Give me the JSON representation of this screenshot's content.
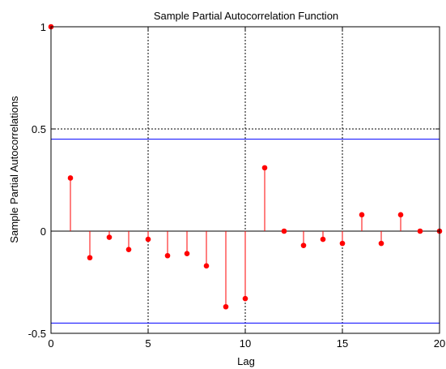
{
  "chart_data": {
    "type": "stem",
    "title": "Sample Partial Autocorrelation Function",
    "xlabel": "Lag",
    "ylabel": "Sample Partial Autocorrelations",
    "xlim": [
      0,
      20
    ],
    "ylim": [
      -0.5,
      1
    ],
    "xticks": [
      0,
      5,
      10,
      15,
      20
    ],
    "yticks": [
      -0.5,
      0,
      0.5,
      1
    ],
    "xtick_labels": [
      "0",
      "5",
      "10",
      "15",
      "20"
    ],
    "ytick_labels": [
      "-0.5",
      "0",
      "0.5",
      "1"
    ],
    "grid": "dotted",
    "series": [
      {
        "x": [
          0,
          1,
          2,
          3,
          4,
          5,
          6,
          7,
          8,
          9,
          10,
          11,
          12,
          13,
          14,
          15,
          16,
          17,
          18,
          19,
          20
        ],
        "values": [
          1,
          0.26,
          -0.13,
          -0.03,
          -0.09,
          -0.04,
          -0.12,
          -0.11,
          -0.17,
          -0.37,
          -0.33,
          0.31,
          0,
          -0.07,
          -0.04,
          -0.06,
          0.08,
          -0.06,
          0.08,
          0,
          0
        ],
        "color": "#ff0000"
      }
    ],
    "bounds": {
      "upper": 0.45,
      "lower": -0.45,
      "color": "#0000ff"
    },
    "colors": {
      "stem": "#ff0000",
      "bounds": "#0000ff",
      "grid": "#000000",
      "zero_line": "#000000"
    }
  }
}
